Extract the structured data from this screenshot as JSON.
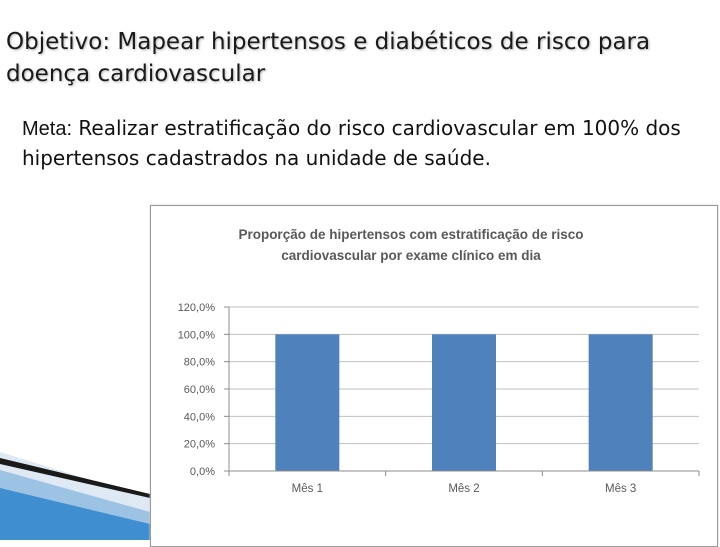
{
  "slide": {
    "objective": "Objetivo: Mapear hipertensos e diabéticos de risco para doença cardiovascular",
    "meta_label": "Meta:",
    "meta_text": " Realizar estratificação do risco cardiovascular em 100% dos hipertensos cadastrados na unidade de saúde."
  },
  "colors": {
    "bar": "#4f81bd",
    "grid": "#bfbfbf",
    "text": "#595959"
  },
  "chart_data": {
    "type": "bar",
    "title": "Proporção de hipertensos com estratificação de risco cardiovascular por  exame clínico em dia",
    "categories": [
      "Mês 1",
      "Mês 2",
      "Mês 3"
    ],
    "values": [
      100,
      100,
      100
    ],
    "ylim": [
      0,
      120
    ],
    "yticks": [
      "0,0%",
      "20,0%",
      "40,0%",
      "60,0%",
      "80,0%",
      "100,0%",
      "120,0%"
    ],
    "xlabel": "",
    "ylabel": "",
    "grid": true,
    "legend": "none"
  }
}
